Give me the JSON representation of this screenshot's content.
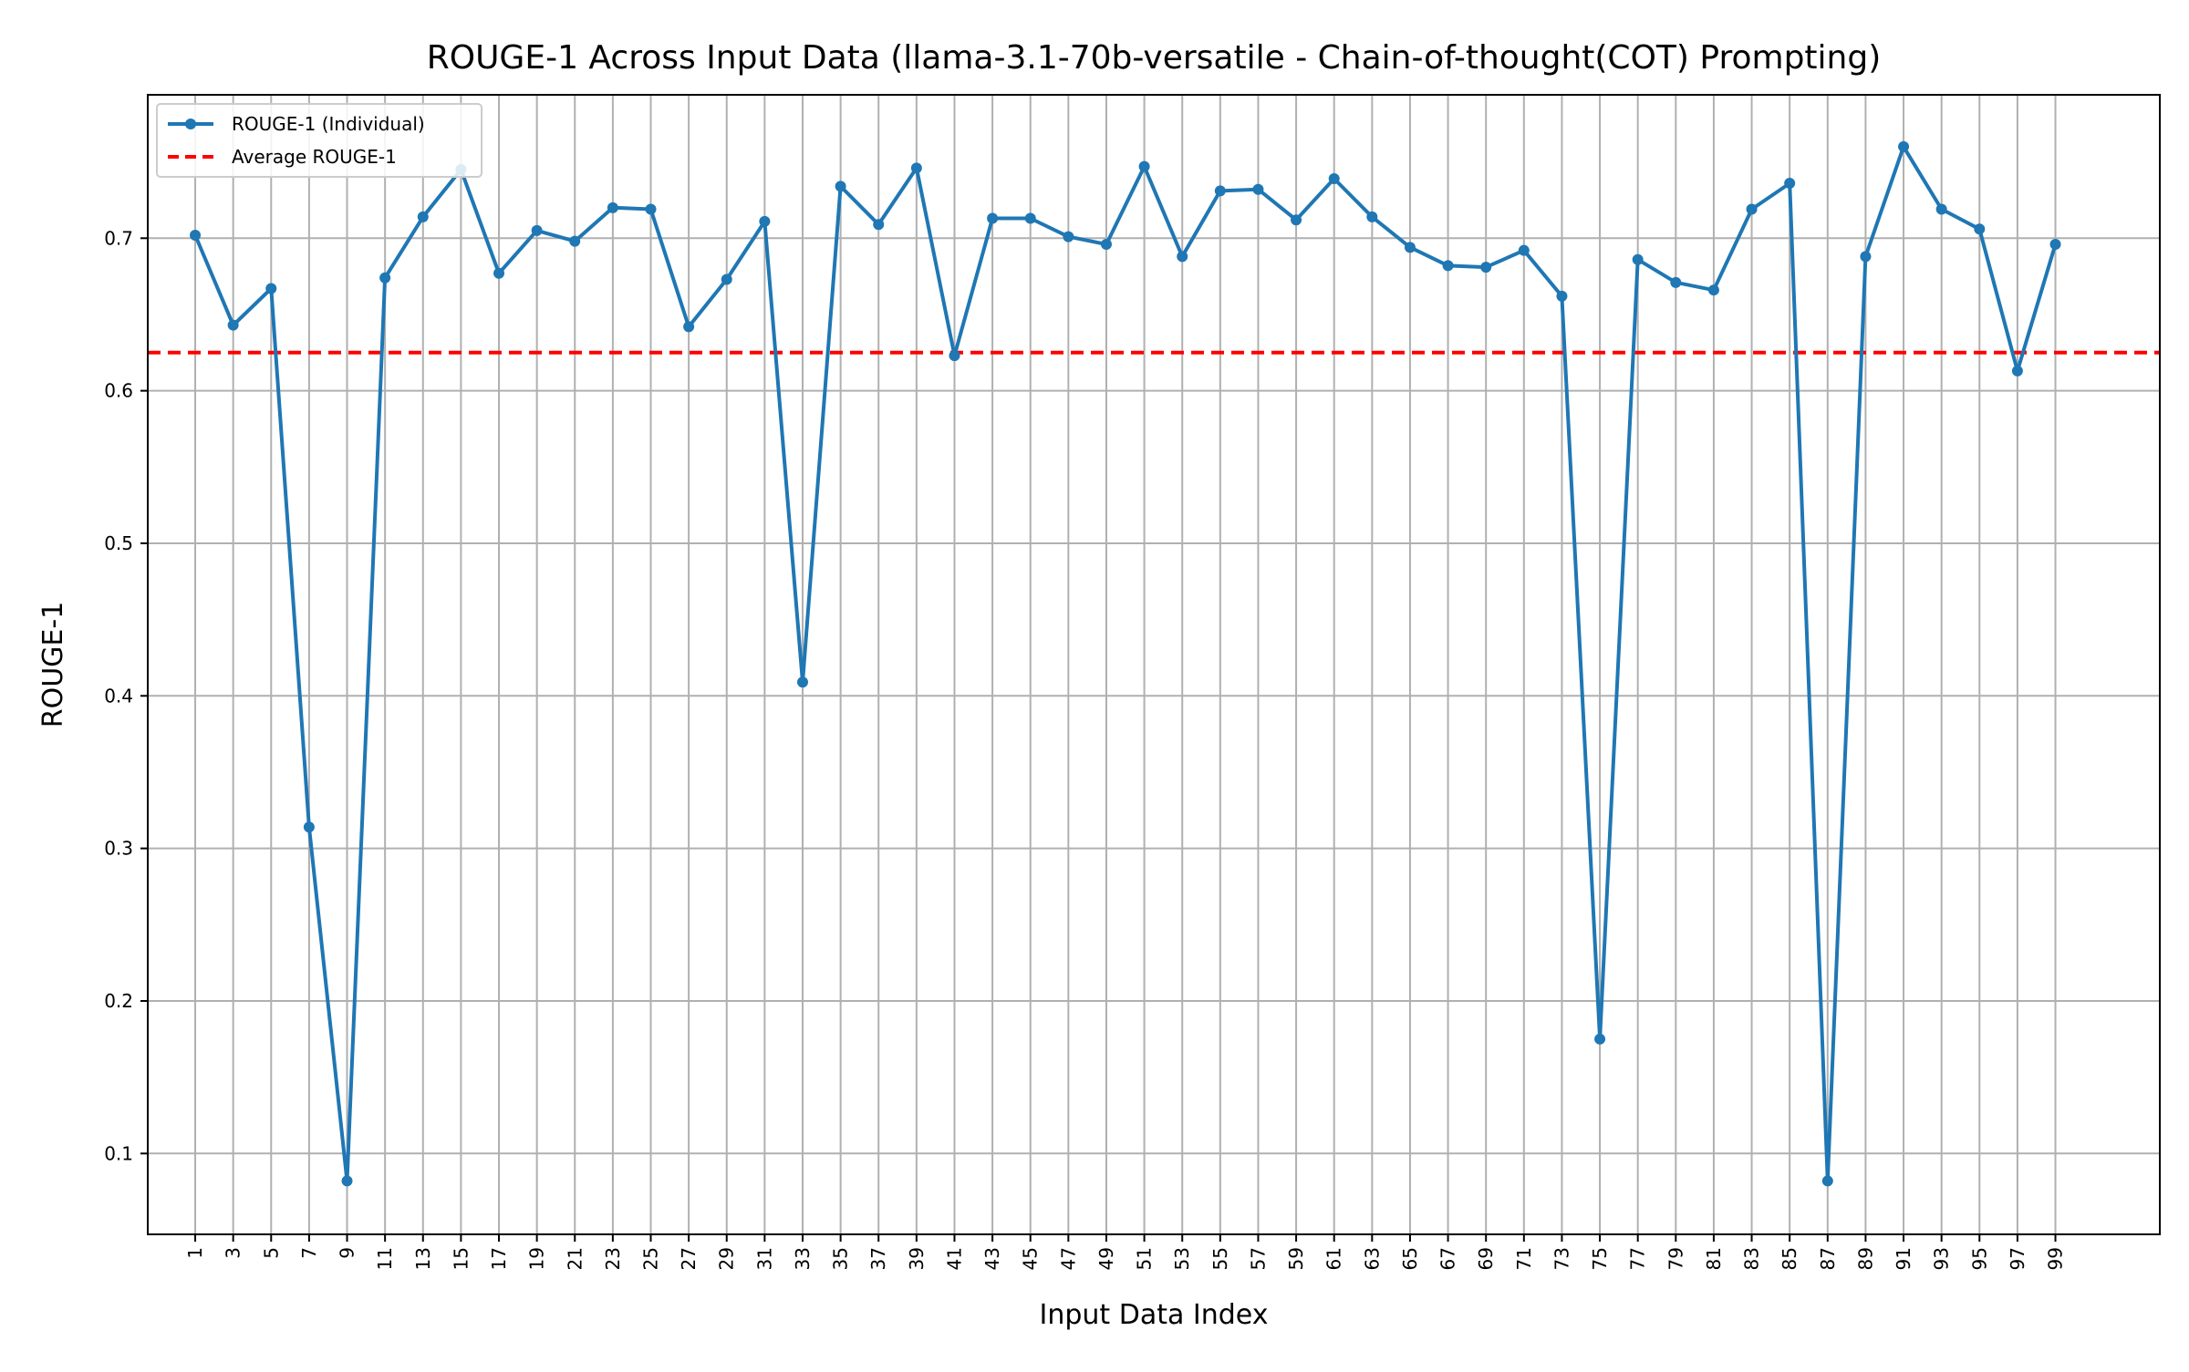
{
  "chart_data": {
    "type": "line",
    "title": "ROUGE-1 Across Input Data (llama-3.1-70b-versatile - Chain-of-thought(COT) Prompting)",
    "xlabel": "Input Data Index",
    "ylabel": "ROUGE-1",
    "xlim": [
      -1.5,
      104.5
    ],
    "ylim": [
      0.047,
      0.794
    ],
    "x_ticks": [
      1,
      3,
      5,
      7,
      9,
      11,
      13,
      15,
      17,
      19,
      21,
      23,
      25,
      27,
      29,
      31,
      33,
      35,
      37,
      39,
      41,
      43,
      45,
      47,
      49,
      51,
      53,
      55,
      57,
      59,
      61,
      63,
      65,
      67,
      69,
      71,
      73,
      75,
      77,
      79,
      81,
      83,
      85,
      87,
      89,
      91,
      93,
      95,
      97,
      99
    ],
    "y_ticks": [
      0.1,
      0.2,
      0.3,
      0.4,
      0.5,
      0.6,
      0.7
    ],
    "y_tick_labels": [
      "0.1",
      "0.2",
      "0.3",
      "0.4",
      "0.5",
      "0.6",
      "0.7"
    ],
    "grid": true,
    "legend_position": "top-left",
    "series": [
      {
        "name": "ROUGE-1 (Individual)",
        "color": "#1f77b4",
        "x": [
          1,
          3,
          5,
          7,
          9,
          11,
          13,
          15,
          17,
          19,
          21,
          23,
          25,
          27,
          29,
          31,
          33,
          35,
          37,
          39,
          41,
          43,
          45,
          47,
          49,
          51,
          53,
          55,
          57,
          59,
          61,
          63,
          65,
          67,
          69,
          71,
          73,
          75,
          77,
          79,
          81,
          83,
          85,
          87,
          89,
          91,
          93,
          95,
          97,
          99
        ],
        "values": [
          0.702,
          0.643,
          0.667,
          0.314,
          0.082,
          0.674,
          0.714,
          0.745,
          0.677,
          0.705,
          0.698,
          0.72,
          0.719,
          0.642,
          0.673,
          0.711,
          0.409,
          0.734,
          0.709,
          0.746,
          0.623,
          0.713,
          0.713,
          0.701,
          0.696,
          0.747,
          0.688,
          0.731,
          0.732,
          0.712,
          0.739,
          0.714,
          0.694,
          0.682,
          0.681,
          0.692,
          0.662,
          0.175,
          0.686,
          0.671,
          0.666,
          0.719,
          0.736,
          0.082,
          0.688,
          0.76,
          0.719,
          0.706,
          0.613,
          0.696
        ]
      }
    ],
    "average": {
      "name": "Average ROUGE-1",
      "value": 0.625,
      "color": "#ff0000"
    }
  }
}
